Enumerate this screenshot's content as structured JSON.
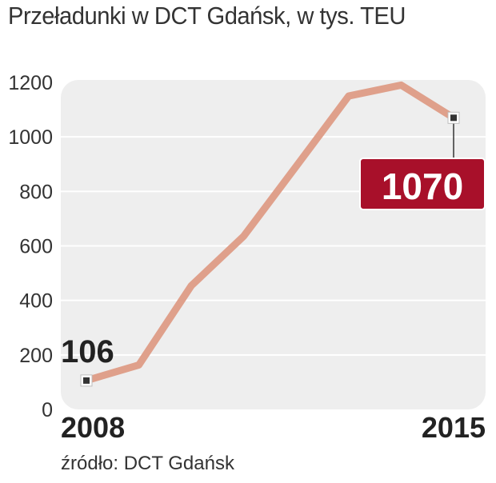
{
  "chart_data": {
    "type": "line",
    "title": "Przeładunki w DCT Gdańsk, w tys. TEU",
    "source": "źródło: DCT Gdańsk",
    "x": [
      2008,
      2009,
      2010,
      2011,
      2012,
      2013,
      2014,
      2015
    ],
    "x_tick_labels": [
      "2008",
      "2015"
    ],
    "series": [
      {
        "values": [
          106,
          163,
          454,
          636,
          892,
          1150,
          1190,
          1070
        ]
      }
    ],
    "ylim": [
      0,
      1200
    ],
    "yticks": [
      0,
      200,
      400,
      600,
      800,
      1000,
      1200
    ],
    "grid": true,
    "annotations": {
      "start_value": "106",
      "end_value": "1070"
    },
    "colors": {
      "line": "#dfa08b",
      "plot_background": "#eeeeee",
      "highlight": "#a8102a",
      "grid": "#ffffff"
    }
  }
}
